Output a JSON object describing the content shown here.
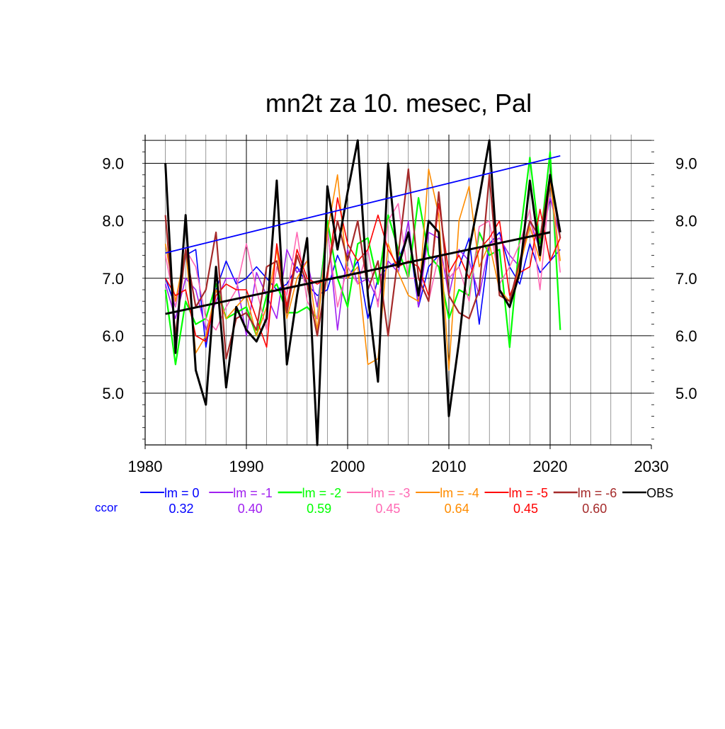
{
  "chart_data": {
    "type": "line",
    "title": "mn2t za 10. mesec, Pal",
    "xlabel": "",
    "ylabel": "",
    "xlim": [
      1980,
      2030
    ],
    "ylim": [
      4.1,
      9.5
    ],
    "x_ticks": [
      1980,
      1990,
      2000,
      2010,
      2020,
      2030
    ],
    "x_tick_labels": [
      "1980",
      "1990",
      "2000",
      "2010",
      "2020",
      "2030"
    ],
    "y_ticks": [
      5.0,
      6.0,
      7.0,
      8.0,
      9.0
    ],
    "y_tick_labels": [
      "5.0",
      "6.0",
      "7.0",
      "8.0",
      "9.0"
    ],
    "grid": true,
    "legend_position": "bottom",
    "ccor_label": "ccor",
    "ccor_color": "#0000ff",
    "x": [
      1982,
      1983,
      1984,
      1985,
      1986,
      1987,
      1988,
      1989,
      1990,
      1991,
      1992,
      1993,
      1994,
      1995,
      1996,
      1997,
      1998,
      1999,
      2000,
      2001,
      2002,
      2003,
      2004,
      2005,
      2006,
      2007,
      2008,
      2009,
      2010,
      2011,
      2012,
      2013,
      2014,
      2015,
      2016,
      2017,
      2018,
      2019,
      2020,
      2021
    ],
    "series": [
      {
        "name": "lm = 0",
        "ccor": "0.32",
        "color": "#0000ff",
        "width": 1.6,
        "values": [
          7.0,
          6.5,
          7.4,
          7.5,
          5.8,
          6.8,
          7.3,
          6.9,
          7.0,
          7.2,
          7.0,
          6.8,
          6.9,
          7.2,
          6.9,
          6.7,
          6.8,
          7.4,
          7.0,
          7.3,
          6.3,
          7.0,
          7.2,
          7.3,
          7.8,
          6.5,
          7.2,
          7.4,
          7.0,
          7.2,
          7.7,
          6.2,
          7.6,
          7.8,
          7.2,
          6.9,
          7.6,
          7.1,
          7.3,
          7.5
        ]
      },
      {
        "name": "lm = -1",
        "ccor": "0.40",
        "color": "#a020f0",
        "width": 1.6,
        "values": [
          6.9,
          6.3,
          7.0,
          6.8,
          6.1,
          6.6,
          7.0,
          7.0,
          6.0,
          7.1,
          6.7,
          6.3,
          7.5,
          7.1,
          7.3,
          6.5,
          7.9,
          6.1,
          7.5,
          6.9,
          7.0,
          6.6,
          7.3,
          7.1,
          8.0,
          6.5,
          7.8,
          7.7,
          6.7,
          7.5,
          7.3,
          6.7,
          7.6,
          7.7,
          7.4,
          7.2,
          8.0,
          7.5,
          8.4,
          7.7
        ]
      },
      {
        "name": "lm = -2",
        "ccor": "0.59",
        "color": "#00ff00",
        "width": 2.2,
        "values": [
          6.8,
          5.5,
          6.6,
          6.2,
          6.3,
          6.9,
          6.3,
          6.4,
          6.5,
          6.0,
          6.7,
          6.9,
          6.4,
          6.4,
          6.5,
          6.3,
          8.0,
          7.0,
          6.5,
          7.6,
          7.7,
          6.9,
          8.1,
          7.5,
          7.0,
          8.4,
          7.4,
          7.2,
          6.3,
          6.8,
          6.7,
          7.8,
          7.4,
          7.5,
          5.8,
          7.7,
          9.1,
          7.6,
          9.2,
          6.1
        ]
      },
      {
        "name": "lm = -3",
        "ccor": "0.45",
        "color": "#ff69b4",
        "width": 1.6,
        "values": [
          7.4,
          6.5,
          7.5,
          7.2,
          6.3,
          6.1,
          6.5,
          6.8,
          7.6,
          6.8,
          6.1,
          7.2,
          6.7,
          7.8,
          6.6,
          6.3,
          7.8,
          6.5,
          7.2,
          6.9,
          7.5,
          6.5,
          8.0,
          8.3,
          7.0,
          7.0,
          6.6,
          7.4,
          7.0,
          7.2,
          6.6,
          7.9,
          8.0,
          6.9,
          7.2,
          7.6,
          8.2,
          6.8,
          8.7,
          7.1
        ]
      },
      {
        "name": "lm = -4",
        "ccor": "0.64",
        "color": "#ff8c00",
        "width": 1.6,
        "values": [
          7.6,
          6.6,
          7.5,
          5.7,
          6.0,
          6.8,
          6.3,
          6.5,
          6.7,
          6.0,
          6.5,
          7.5,
          6.3,
          7.0,
          7.3,
          6.1,
          7.8,
          8.8,
          7.0,
          7.2,
          5.5,
          5.6,
          7.6,
          7.1,
          6.7,
          6.6,
          8.9,
          8.1,
          5.4,
          8.0,
          8.6,
          7.2,
          7.6,
          6.8,
          6.6,
          7.2,
          7.9,
          7.3,
          8.7,
          7.3
        ]
      },
      {
        "name": "lm = -5",
        "ccor": "0.45",
        "color": "#ff0000",
        "width": 1.6,
        "values": [
          7.0,
          6.7,
          6.8,
          6.0,
          5.9,
          6.7,
          6.9,
          6.8,
          6.8,
          6.3,
          5.8,
          7.6,
          6.5,
          7.5,
          7.0,
          6.9,
          7.0,
          8.4,
          7.6,
          7.3,
          7.5,
          8.1,
          7.5,
          7.2,
          7.3,
          7.2,
          6.7,
          8.3,
          7.1,
          7.4,
          7.0,
          7.5,
          7.7,
          8.0,
          6.7,
          7.1,
          7.2,
          8.2,
          7.3,
          7.7
        ]
      },
      {
        "name": "lm = -6",
        "ccor": "0.60",
        "color": "#a52a2a",
        "width": 2.2,
        "values": [
          8.1,
          6.0,
          7.5,
          6.5,
          6.8,
          7.8,
          5.6,
          6.3,
          6.4,
          6.1,
          7.2,
          7.3,
          6.4,
          7.4,
          6.9,
          6.0,
          7.1,
          8.0,
          7.3,
          8.0,
          6.8,
          7.3,
          6.0,
          7.4,
          8.9,
          7.0,
          6.6,
          8.5,
          6.7,
          6.4,
          6.3,
          6.8,
          8.8,
          6.7,
          6.6,
          7.3,
          8.0,
          7.7,
          8.8,
          7.7
        ]
      },
      {
        "name": "OBS",
        "ccor": "",
        "color": "#000000",
        "width": 3.0,
        "values": [
          9.0,
          5.7,
          8.1,
          5.4,
          4.8,
          7.2,
          5.1,
          6.5,
          6.1,
          5.9,
          6.3,
          8.7,
          5.5,
          6.7,
          7.7,
          4.1,
          8.6,
          7.5,
          8.5,
          9.4,
          6.7,
          5.2,
          9.0,
          7.2,
          7.8,
          6.7,
          8.0,
          7.8,
          4.6,
          5.9,
          7.5,
          8.4,
          9.4,
          6.8,
          6.5,
          7.1,
          8.7,
          7.4,
          8.8,
          7.8
        ]
      }
    ],
    "trend_lines": [
      {
        "name": "lm = 0 trend",
        "color": "#0000ff",
        "width": 1.8,
        "x": [
          1982,
          2021
        ],
        "y": [
          7.44,
          9.13
        ]
      },
      {
        "name": "OBS trend",
        "color": "#000000",
        "width": 3.0,
        "x": [
          1982,
          2020
        ],
        "y": [
          6.38,
          7.8
        ]
      }
    ]
  }
}
